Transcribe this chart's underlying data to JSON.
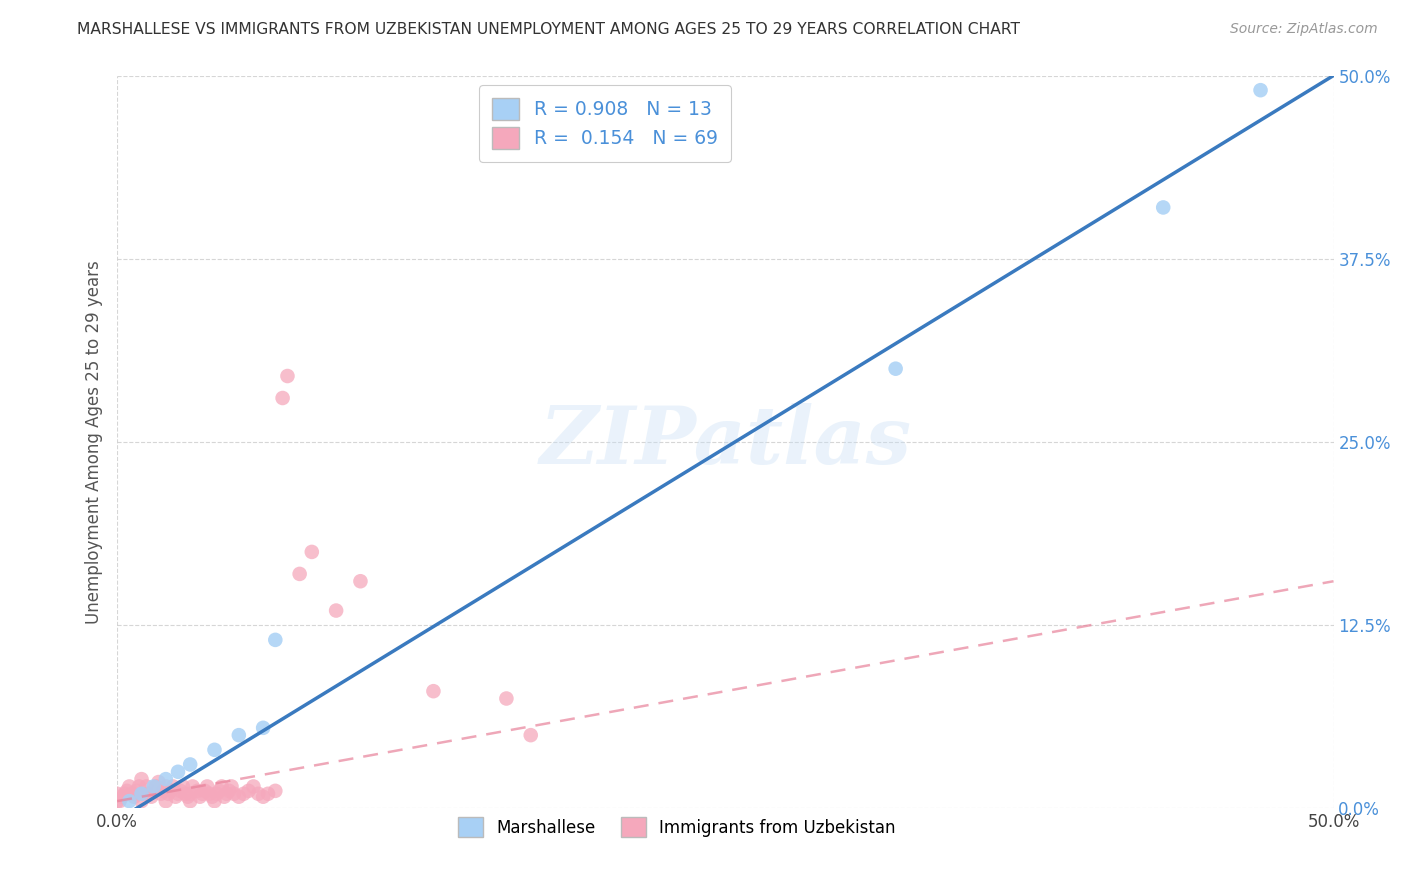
{
  "title": "MARSHALLESE VS IMMIGRANTS FROM UZBEKISTAN UNEMPLOYMENT AMONG AGES 25 TO 29 YEARS CORRELATION CHART",
  "source": "Source: ZipAtlas.com",
  "ylabel": "Unemployment Among Ages 25 to 29 years",
  "xmin": 0.0,
  "xmax": 0.5,
  "ymin": 0.0,
  "ymax": 0.5,
  "xticks": [
    0.0,
    0.5
  ],
  "xtick_labels": [
    "0.0%",
    "50.0%"
  ],
  "ytick_labels": [
    "0.0%",
    "12.5%",
    "25.0%",
    "37.5%",
    "50.0%"
  ],
  "yticks": [
    0.0,
    0.125,
    0.25,
    0.375,
    0.5
  ],
  "legend1_label": "Marshallese",
  "legend2_label": "Immigrants from Uzbekistan",
  "R1": 0.908,
  "N1": 13,
  "R2": 0.154,
  "N2": 69,
  "color1": "#a8d0f5",
  "color2": "#f5a8bc",
  "line1_color": "#3a7abf",
  "line2_color": "#e8829a",
  "tick_color": "#4a90d9",
  "watermark_text": "ZIPatlas",
  "marshallese_x": [
    0.005,
    0.01,
    0.015,
    0.02,
    0.025,
    0.03,
    0.04,
    0.05,
    0.06,
    0.065,
    0.32,
    0.43,
    0.47
  ],
  "marshallese_y": [
    0.005,
    0.01,
    0.015,
    0.02,
    0.025,
    0.03,
    0.04,
    0.05,
    0.055,
    0.115,
    0.3,
    0.41,
    0.49
  ],
  "uzbekistan_x": [
    0.0,
    0.0,
    0.001,
    0.002,
    0.003,
    0.004,
    0.005,
    0.006,
    0.007,
    0.008,
    0.009,
    0.01,
    0.01,
    0.01,
    0.012,
    0.013,
    0.014,
    0.015,
    0.016,
    0.017,
    0.018,
    0.019,
    0.02,
    0.02,
    0.021,
    0.022,
    0.023,
    0.024,
    0.025,
    0.026,
    0.027,
    0.028,
    0.029,
    0.03,
    0.03,
    0.031,
    0.033,
    0.034,
    0.035,
    0.036,
    0.037,
    0.038,
    0.039,
    0.04,
    0.041,
    0.042,
    0.043,
    0.044,
    0.045,
    0.046,
    0.047,
    0.048,
    0.05,
    0.052,
    0.054,
    0.056,
    0.058,
    0.06,
    0.062,
    0.065,
    0.068,
    0.07,
    0.075,
    0.08,
    0.09,
    0.1,
    0.13,
    0.16,
    0.17
  ],
  "uzbekistan_y": [
    0.005,
    0.01,
    0.005,
    0.008,
    0.01,
    0.012,
    0.015,
    0.01,
    0.008,
    0.012,
    0.015,
    0.005,
    0.01,
    0.02,
    0.015,
    0.01,
    0.008,
    0.012,
    0.015,
    0.018,
    0.01,
    0.012,
    0.005,
    0.015,
    0.01,
    0.012,
    0.015,
    0.008,
    0.01,
    0.012,
    0.015,
    0.01,
    0.008,
    0.005,
    0.01,
    0.015,
    0.012,
    0.008,
    0.01,
    0.012,
    0.015,
    0.01,
    0.008,
    0.005,
    0.01,
    0.012,
    0.015,
    0.008,
    0.01,
    0.012,
    0.015,
    0.01,
    0.008,
    0.01,
    0.012,
    0.015,
    0.01,
    0.008,
    0.01,
    0.012,
    0.28,
    0.295,
    0.16,
    0.175,
    0.135,
    0.155,
    0.08,
    0.075,
    0.05
  ],
  "blue_line_x0": 0.0,
  "blue_line_y0": -0.008,
  "blue_line_x1": 0.5,
  "blue_line_y1": 0.5,
  "pink_line_x0": 0.0,
  "pink_line_y0": 0.005,
  "pink_line_x1": 0.5,
  "pink_line_y1": 0.155
}
